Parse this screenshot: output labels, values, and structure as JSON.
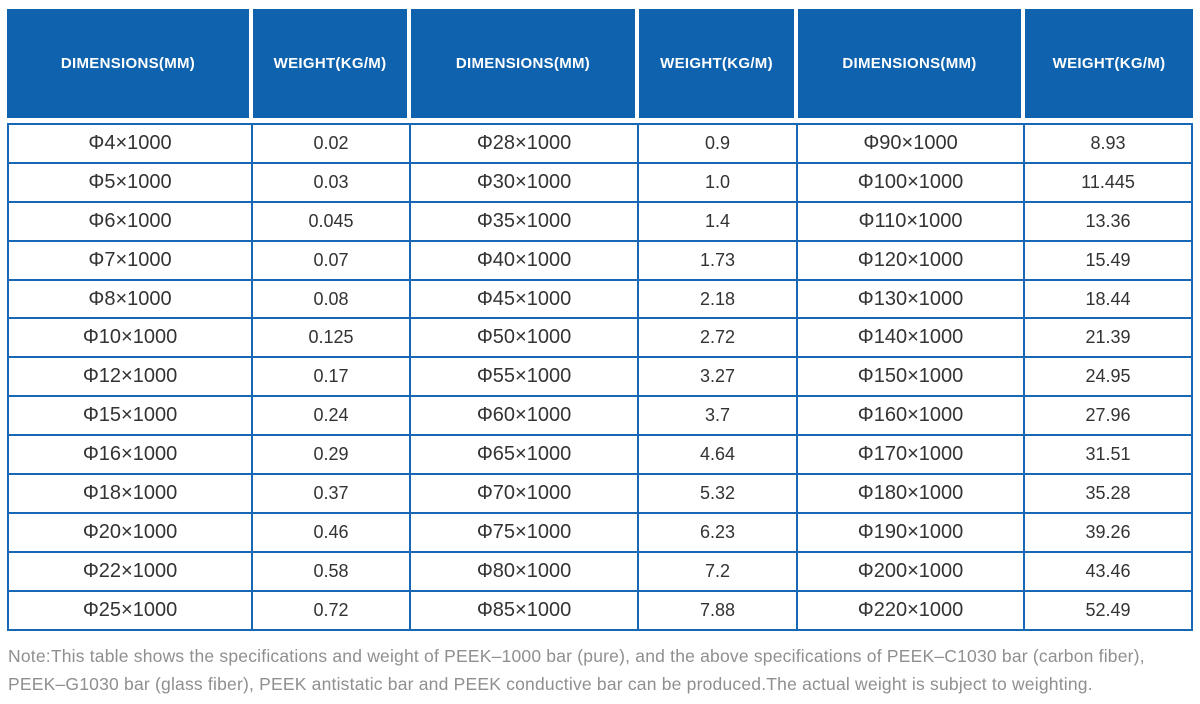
{
  "table": {
    "columns": [
      "DIMENSIONS(MM)",
      "WEIGHT(KG/M)",
      "DIMENSIONS(MM)",
      "WEIGHT(KG/M)",
      "DIMENSIONS(MM)",
      "WEIGHT(KG/M)"
    ],
    "rows": [
      [
        "Φ4×1000",
        "0.02",
        "Φ28×1000",
        "0.9",
        "Φ90×1000",
        "8.93"
      ],
      [
        "Φ5×1000",
        "0.03",
        "Φ30×1000",
        "1.0",
        "Φ100×1000",
        "11.445"
      ],
      [
        "Φ6×1000",
        "0.045",
        "Φ35×1000",
        "1.4",
        "Φ110×1000",
        "13.36"
      ],
      [
        "Φ7×1000",
        "0.07",
        "Φ40×1000",
        "1.73",
        "Φ120×1000",
        "15.49"
      ],
      [
        "Φ8×1000",
        "0.08",
        "Φ45×1000",
        "2.18",
        "Φ130×1000",
        "18.44"
      ],
      [
        "Φ10×1000",
        "0.125",
        "Φ50×1000",
        "2.72",
        "Φ140×1000",
        "21.39"
      ],
      [
        "Φ12×1000",
        "0.17",
        "Φ55×1000",
        "3.27",
        "Φ150×1000",
        "24.95"
      ],
      [
        "Φ15×1000",
        "0.24",
        "Φ60×1000",
        "3.7",
        "Φ160×1000",
        "27.96"
      ],
      [
        "Φ16×1000",
        "0.29",
        "Φ65×1000",
        "4.64",
        "Φ170×1000",
        "31.51"
      ],
      [
        "Φ18×1000",
        "0.37",
        "Φ70×1000",
        "5.32",
        "Φ180×1000",
        "35.28"
      ],
      [
        "Φ20×1000",
        "0.46",
        "Φ75×1000",
        "6.23",
        "Φ190×1000",
        "39.26"
      ],
      [
        "Φ22×1000",
        "0.58",
        "Φ80×1000",
        "7.2",
        "Φ200×1000",
        "43.46"
      ],
      [
        "Φ25×1000",
        "0.72",
        "Φ85×1000",
        "7.88",
        "Φ220×1000",
        "52.49"
      ]
    ],
    "colors": {
      "header_bg": "#0f63ae",
      "header_text": "#ffffff",
      "border": "#1667b4",
      "cell_text": "#333333"
    }
  },
  "note": {
    "line1": "Note:This table shows the specifications and weight of PEEK–1000 bar (pure), and the above specifications of PEEK–C1030 bar (carbon fiber),",
    "line2": "PEEK–G1030 bar (glass fiber), PEEK antistatic bar and PEEK conductive bar can be produced.The actual weight is subject to weighting.",
    "text_color": "#8f8f8f"
  }
}
